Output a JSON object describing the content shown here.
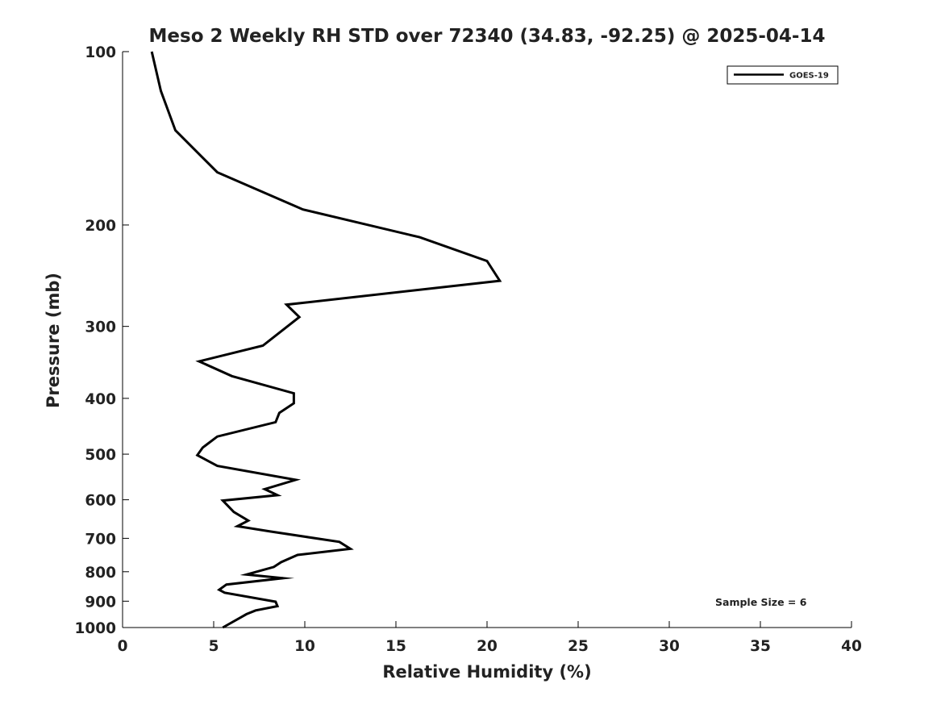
{
  "chart_data": {
    "type": "line",
    "title": "Meso 2 Weekly RH STD over 72340 (34.83, -92.25) @ 2025-04-14",
    "xlabel": "Relative Humidity (%)",
    "ylabel": "Pressure (mb)",
    "xlim": [
      0,
      40
    ],
    "ylim": [
      1000,
      100
    ],
    "y_scale": "log",
    "x_ticks": [
      0,
      5,
      10,
      15,
      20,
      25,
      30,
      35,
      40
    ],
    "y_ticks": [
      100,
      200,
      300,
      400,
      500,
      600,
      700,
      800,
      900,
      1000
    ],
    "grid": false,
    "legend_position": "top-right",
    "annotation": "Sample Size = 6",
    "series": [
      {
        "name": "GOES-19",
        "color": "#000000",
        "points": [
          [
            1.6,
            100
          ],
          [
            2.1,
            117
          ],
          [
            2.9,
            137
          ],
          [
            5.2,
            162
          ],
          [
            9.9,
            188
          ],
          [
            16.3,
            210
          ],
          [
            20.0,
            231
          ],
          [
            20.7,
            250
          ],
          [
            9.0,
            275
          ],
          [
            9.7,
            289
          ],
          [
            7.7,
            324
          ],
          [
            4.2,
            345
          ],
          [
            6.0,
            366
          ],
          [
            9.4,
            392
          ],
          [
            9.4,
            408
          ],
          [
            8.6,
            424
          ],
          [
            8.4,
            440
          ],
          [
            5.2,
            466
          ],
          [
            4.4,
            487
          ],
          [
            4.1,
            502
          ],
          [
            5.2,
            524
          ],
          [
            9.5,
            554
          ],
          [
            7.8,
            575
          ],
          [
            8.5,
            589
          ],
          [
            5.5,
            602
          ],
          [
            6.1,
            630
          ],
          [
            6.9,
            652
          ],
          [
            6.3,
            667
          ],
          [
            8.1,
            681
          ],
          [
            11.9,
            710
          ],
          [
            12.5,
            730
          ],
          [
            9.6,
            748
          ],
          [
            8.7,
            770
          ],
          [
            8.3,
            785
          ],
          [
            6.8,
            809
          ],
          [
            8.8,
            821
          ],
          [
            5.7,
            842
          ],
          [
            5.3,
            860
          ],
          [
            5.6,
            870
          ],
          [
            8.4,
            902
          ],
          [
            8.5,
            918
          ],
          [
            7.3,
            934
          ],
          [
            6.8,
            948
          ],
          [
            5.5,
            1000
          ]
        ]
      }
    ]
  }
}
